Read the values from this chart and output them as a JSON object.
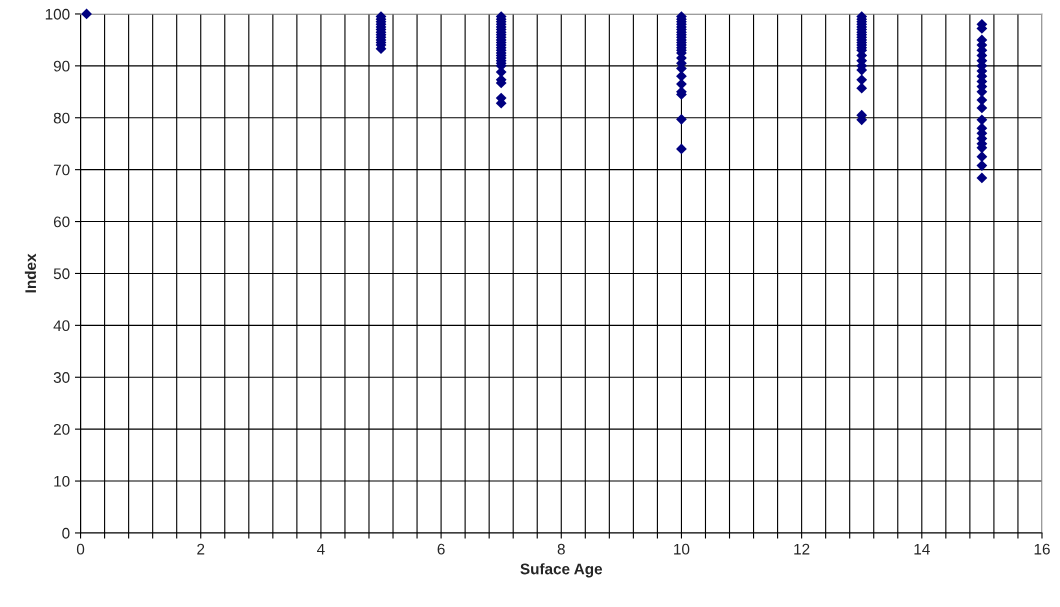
{
  "chart_data": {
    "type": "scatter",
    "xlabel": "Suface Age",
    "ylabel": "Index",
    "x": [
      0.1,
      5,
      5,
      5,
      5,
      5,
      5,
      5,
      5,
      5,
      5,
      5,
      5,
      5,
      7,
      7,
      7,
      7,
      7,
      7,
      7,
      7,
      7,
      7,
      7,
      7,
      7,
      7,
      7,
      7,
      7,
      7,
      7,
      7,
      7,
      7,
      7,
      7,
      7,
      10,
      10,
      10,
      10,
      10,
      10,
      10,
      10,
      10,
      10,
      10,
      10,
      10,
      10,
      10,
      10,
      10,
      10,
      10,
      10,
      10,
      10,
      10,
      10,
      13,
      13,
      13,
      13,
      13,
      13,
      13,
      13,
      13,
      13,
      13,
      13,
      13,
      13,
      13,
      13,
      13,
      13,
      13,
      13,
      13,
      13,
      15,
      15,
      15,
      15,
      15,
      15,
      15,
      15,
      15,
      15,
      15,
      15,
      15,
      15,
      15,
      15,
      15,
      15,
      15,
      15,
      15,
      15,
      15,
      15
    ],
    "values": [
      100,
      99.5,
      99,
      98.5,
      98,
      97.5,
      97,
      96.5,
      96,
      95.5,
      95,
      94.5,
      94,
      93.3,
      99.5,
      99,
      98.5,
      98,
      97.5,
      97,
      96.5,
      96,
      95.5,
      95,
      94.5,
      94,
      93.5,
      93,
      92.5,
      92,
      91.5,
      91,
      90.5,
      90,
      88.8,
      87.3,
      86.7,
      83.8,
      82.8,
      99.5,
      99,
      98.5,
      98,
      97.5,
      97,
      96.5,
      96,
      95.5,
      95,
      94.5,
      94,
      93.5,
      93,
      92.5,
      91.5,
      90.5,
      89.5,
      88,
      86.5,
      85,
      84.5,
      79.7,
      74,
      99.5,
      99,
      98.5,
      98,
      97.5,
      97,
      96.5,
      96,
      95.5,
      95,
      94.5,
      94,
      93.5,
      93,
      92,
      91,
      90,
      89.2,
      87.3,
      85.7,
      80.5,
      79.6,
      98,
      97.2,
      95,
      94,
      93,
      92,
      91,
      90,
      89,
      88,
      87,
      86,
      85,
      83.4,
      81.9,
      79.6,
      78,
      77,
      76,
      75,
      74.2,
      72.5,
      70.8,
      68.4
    ],
    "color": "#000080",
    "marker": "diamond",
    "xlim": [
      0,
      16
    ],
    "ylim": [
      0,
      100
    ],
    "xticks": [
      0,
      {
        "value": 0.4,
        "label": null
      },
      {
        "value": 0.8,
        "label": null
      },
      {
        "value": 1.2,
        "label": null
      },
      {
        "value": 1.6,
        "label": null
      },
      2,
      {
        "value": 2.4,
        "label": null
      },
      {
        "value": 2.8,
        "label": null
      },
      {
        "value": 3.2,
        "label": null
      },
      {
        "value": 3.6,
        "label": null
      },
      4,
      {
        "value": 4.4,
        "label": null
      },
      {
        "value": 4.8,
        "label": null
      },
      {
        "value": 5.2,
        "label": null
      },
      {
        "value": 5.6,
        "label": null
      },
      6,
      {
        "value": 6.4,
        "label": null
      },
      {
        "value": 6.8,
        "label": null
      },
      {
        "value": 7.2,
        "label": null
      },
      {
        "value": 7.6,
        "label": null
      },
      8,
      {
        "value": 8.4,
        "label": null
      },
      {
        "value": 8.8,
        "label": null
      },
      {
        "value": 9.2,
        "label": null
      },
      {
        "value": 9.6,
        "label": null
      },
      10,
      {
        "value": 10.4,
        "label": null
      },
      {
        "value": 10.8,
        "label": null
      },
      {
        "value": 11.2,
        "label": null
      },
      {
        "value": 11.6,
        "label": null
      },
      12,
      {
        "value": 12.4,
        "label": null
      },
      {
        "value": 12.8,
        "label": null
      },
      {
        "value": 13.2,
        "label": null
      },
      {
        "value": 13.6,
        "label": null
      },
      14,
      {
        "value": 14.4,
        "label": null
      },
      {
        "value": 14.8,
        "label": null
      },
      {
        "value": 15.2,
        "label": null
      },
      {
        "value": 15.6,
        "label": null
      },
      16
    ],
    "yticks": [
      0,
      10,
      20,
      30,
      40,
      50,
      60,
      70,
      80,
      90,
      100
    ],
    "grid": true
  }
}
